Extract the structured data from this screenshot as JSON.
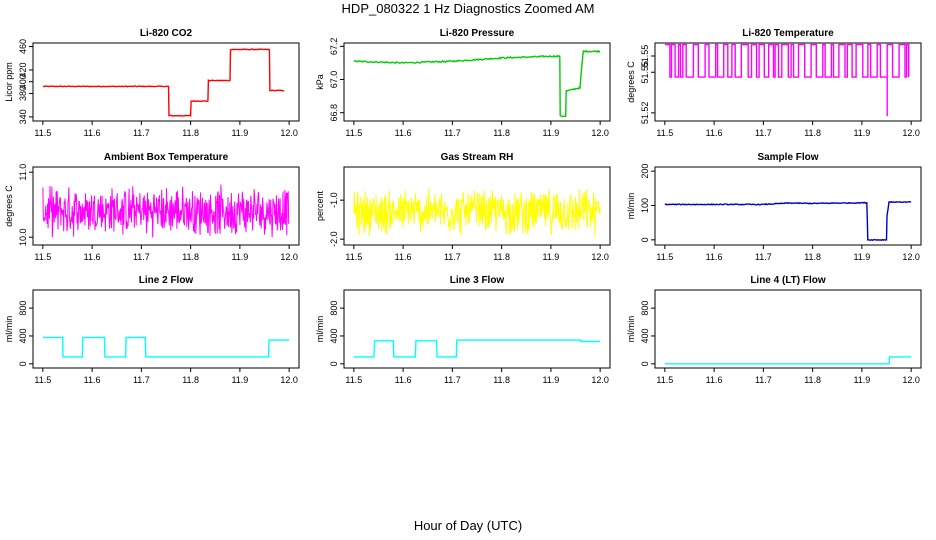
{
  "figure": {
    "title": "HDP_080322  1 Hz Diagnostics Zoomed AM",
    "xlabel": "Hour of Day (UTC)"
  },
  "chart_data": [
    {
      "type": "line",
      "title": "Li-820 CO2",
      "ylabel": "Licor ppm",
      "color": "#ff0000",
      "xlim": [
        11.48,
        12.02
      ],
      "ylim": [
        333,
        466
      ],
      "xticks": [
        "11.5",
        "11.6",
        "11.7",
        "11.8",
        "11.9",
        "12.0"
      ],
      "yticks": [
        "340",
        "380",
        "400",
        "420",
        "460"
      ],
      "noise": 0.6,
      "x": [
        11.5,
        11.755,
        11.756,
        11.8,
        11.801,
        11.835,
        11.836,
        11.88,
        11.881,
        11.96,
        11.961,
        11.99
      ],
      "y": [
        392,
        392,
        342,
        342,
        367,
        367,
        402,
        402,
        455,
        455,
        385,
        385
      ]
    },
    {
      "type": "line",
      "title": "Li-820 Pressure",
      "ylabel": "kPa",
      "color": "#00cc00",
      "xlim": [
        11.48,
        12.02
      ],
      "ylim": [
        66.75,
        67.22
      ],
      "xticks": [
        "11.5",
        "11.6",
        "11.7",
        "11.8",
        "11.9",
        "12.0"
      ],
      "yticks": [
        "66.8",
        "67.0",
        "67.2"
      ],
      "noise": 0.004,
      "x": [
        11.5,
        11.6,
        11.7,
        11.8,
        11.9,
        11.918,
        11.919,
        11.93,
        11.931,
        11.958,
        11.959,
        11.965,
        11.966,
        12.0
      ],
      "y": [
        67.11,
        67.1,
        67.11,
        67.13,
        67.14,
        67.14,
        66.78,
        66.78,
        66.93,
        66.95,
        66.95,
        67.15,
        67.17,
        67.17
      ]
    },
    {
      "type": "line",
      "title": "Li-820 Temperature",
      "ylabel": "degrees C",
      "color": "#ff00ff",
      "xlim": [
        11.48,
        12.02
      ],
      "ylim": [
        51.515,
        51.563
      ],
      "xticks": [
        "11.5",
        "11.6",
        "11.7",
        "11.8",
        "11.9",
        "12.0"
      ],
      "yticks": [
        "51.52",
        "51.55",
        "51.55"
      ],
      "pattern": "toggle",
      "levels": [
        51.542,
        51.562
      ],
      "dip": {
        "x": 11.955,
        "y": 51.518
      }
    },
    {
      "type": "line",
      "title": "Ambient Box Temperature",
      "ylabel": "degrees C",
      "color": "#ff00ff",
      "xlim": [
        11.48,
        12.02
      ],
      "ylim": [
        9.88,
        11.08
      ],
      "xticks": [
        "11.5",
        "11.6",
        "11.7",
        "11.8",
        "11.9",
        "12.0"
      ],
      "yticks": [
        "10.0",
        "11.0"
      ],
      "pattern": "noise",
      "mean": 10.4,
      "amplitude": 0.42
    },
    {
      "type": "line",
      "title": "Gas Stream RH",
      "ylabel": "percent",
      "color": "#ffff00",
      "xlim": [
        11.48,
        12.02
      ],
      "ylim": [
        -2.15,
        -0.15
      ],
      "xticks": [
        "11.5",
        "11.6",
        "11.7",
        "11.8",
        "11.9",
        "12.0"
      ],
      "yticks": [
        "-2.0",
        "-1.0"
      ],
      "pattern": "noise",
      "mean": -1.3,
      "amplitude": 0.65
    },
    {
      "type": "line",
      "title": "Sample Flow",
      "ylabel": "ml/min",
      "color": "#0000cc",
      "xlim": [
        11.48,
        12.02
      ],
      "ylim": [
        -15,
        212
      ],
      "xticks": [
        "11.5",
        "11.6",
        "11.7",
        "11.8",
        "11.9",
        "12.0"
      ],
      "yticks": [
        "0",
        "100",
        "200"
      ],
      "noise": 1.2,
      "x": [
        11.5,
        11.7,
        11.75,
        11.8,
        11.91,
        11.911,
        11.912,
        11.95,
        11.951,
        11.955,
        11.956,
        12.0
      ],
      "y": [
        103,
        103,
        107,
        106,
        108,
        60,
        0,
        0,
        70,
        110,
        110,
        110
      ]
    },
    {
      "type": "line",
      "title": "Line 2 Flow",
      "ylabel": "ml/min",
      "color": "#00ffff",
      "xlim": [
        11.48,
        12.02
      ],
      "ylim": [
        -60,
        1060
      ],
      "xticks": [
        "11.5",
        "11.6",
        "11.7",
        "11.8",
        "11.9",
        "12.0"
      ],
      "yticks": [
        "0",
        "400",
        "800"
      ],
      "noise": 0,
      "x": [
        11.5,
        11.54,
        11.541,
        11.58,
        11.581,
        11.625,
        11.626,
        11.668,
        11.669,
        11.708,
        11.709,
        11.958,
        11.959,
        12.0
      ],
      "y": [
        380,
        380,
        100,
        100,
        380,
        380,
        100,
        100,
        380,
        380,
        100,
        100,
        340,
        340
      ]
    },
    {
      "type": "line",
      "title": "Line 3 Flow",
      "ylabel": "ml/min",
      "color": "#00ffff",
      "xlim": [
        11.48,
        12.02
      ],
      "ylim": [
        -60,
        1060
      ],
      "xticks": [
        "11.5",
        "11.6",
        "11.7",
        "11.8",
        "11.9",
        "12.0"
      ],
      "yticks": [
        "0",
        "400",
        "800"
      ],
      "noise": 0,
      "x": [
        11.5,
        11.541,
        11.542,
        11.58,
        11.581,
        11.625,
        11.626,
        11.668,
        11.669,
        11.708,
        11.709,
        11.96,
        11.961,
        12.0
      ],
      "y": [
        100,
        100,
        330,
        330,
        100,
        100,
        330,
        330,
        100,
        100,
        340,
        340,
        320,
        320
      ]
    },
    {
      "type": "line",
      "title": "Line 4 (LT) Flow",
      "ylabel": "ml/min",
      "color": "#00ffff",
      "xlim": [
        11.48,
        12.02
      ],
      "ylim": [
        -60,
        1060
      ],
      "xticks": [
        "11.5",
        "11.6",
        "11.7",
        "11.8",
        "11.9",
        "12.0"
      ],
      "yticks": [
        "0",
        "400",
        "800"
      ],
      "noise": 0,
      "x": [
        11.5,
        11.955,
        11.956,
        12.0
      ],
      "y": [
        0,
        0,
        100,
        100
      ]
    }
  ]
}
